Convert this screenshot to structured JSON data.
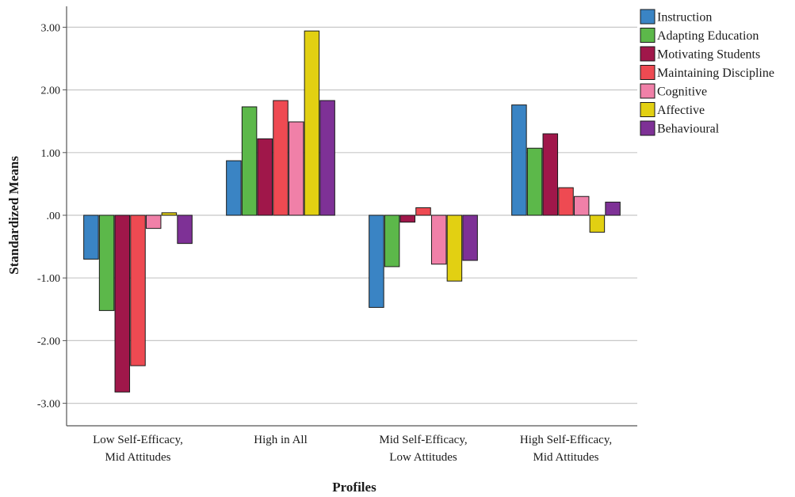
{
  "chart_data": {
    "type": "bar",
    "title": "",
    "xlabel": "Profiles",
    "ylabel": "Standardized Means",
    "ylim": [
      -3.3,
      3.3
    ],
    "yticks": [
      3.0,
      2.0,
      1.0,
      0.0,
      -1.0,
      -2.0,
      -3.0
    ],
    "ytick_labels": [
      "3.00",
      "2.00",
      "1.00",
      ".00",
      "-1.00",
      "-2.00",
      "-3.00"
    ],
    "grid": true,
    "legend_position": "top-right",
    "categories": [
      [
        "Low Self-Efficacy,",
        "Mid Attitudes"
      ],
      [
        "High in All"
      ],
      [
        "Mid Self-Efficacy,",
        "Low Attitudes"
      ],
      [
        "High Self-Efficacy,",
        "Mid Attitudes"
      ]
    ],
    "series": [
      {
        "name": "Instruction",
        "color": "#3a84c4",
        "values": [
          -0.7,
          0.87,
          -1.47,
          1.76
        ]
      },
      {
        "name": "Adapting Education",
        "color": "#5cb84a",
        "values": [
          -1.52,
          1.73,
          -0.82,
          1.07
        ]
      },
      {
        "name": "Motivating Students",
        "color": "#a0174a",
        "values": [
          -2.82,
          1.22,
          -0.11,
          1.3
        ]
      },
      {
        "name": "Maintaining Discipline",
        "color": "#ee4a52",
        "values": [
          -2.4,
          1.83,
          0.12,
          0.44
        ]
      },
      {
        "name": "Cognitive",
        "color": "#f080a8",
        "values": [
          -0.21,
          1.49,
          -0.78,
          0.3
        ]
      },
      {
        "name": "Affective",
        "color": "#e2d012",
        "values": [
          0.04,
          2.94,
          -1.05,
          -0.27
        ]
      },
      {
        "name": "Behavioural",
        "color": "#7e3196",
        "values": [
          -0.45,
          1.83,
          -0.72,
          0.21
        ]
      }
    ]
  }
}
